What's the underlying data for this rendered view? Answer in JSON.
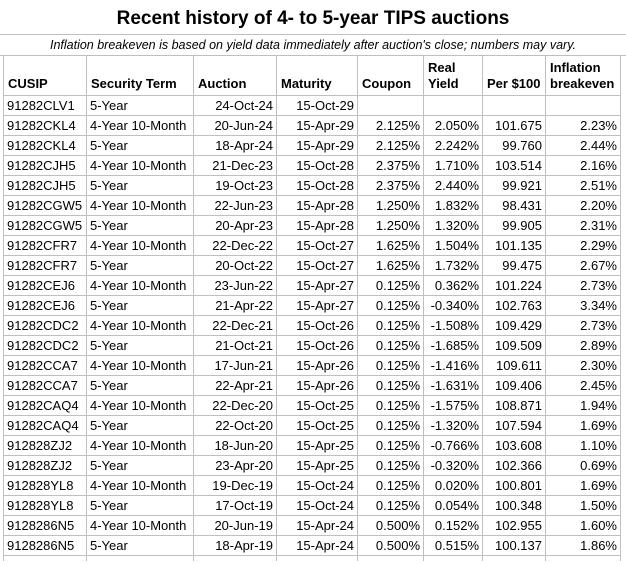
{
  "title": "Recent history of 4- to 5-year TIPS auctions",
  "subtitle": "Inflation breakeven is based on yield data immediately after auction's close; numbers may vary.",
  "colors": {
    "background": "#ffffff",
    "text": "#000000",
    "gridline": "#bfbfbf"
  },
  "table": {
    "columns": [
      "CUSIP",
      "Security Term",
      "Auction",
      "Maturity",
      "Coupon",
      "Real Yield",
      "Per $100",
      "Inflation breakeven"
    ],
    "rows": [
      [
        "91282CLV1",
        "5-Year",
        "24-Oct-24",
        "15-Oct-29",
        "",
        "",
        "",
        ""
      ],
      [
        "91282CKL4",
        "4-Year 10-Month",
        "20-Jun-24",
        "15-Apr-29",
        "2.125%",
        "2.050%",
        "101.675",
        "2.23%"
      ],
      [
        "91282CKL4",
        "5-Year",
        "18-Apr-24",
        "15-Apr-29",
        "2.125%",
        "2.242%",
        "99.760",
        "2.44%"
      ],
      [
        "91282CJH5",
        "4-Year 10-Month",
        "21-Dec-23",
        "15-Oct-28",
        "2.375%",
        "1.710%",
        "103.514",
        "2.16%"
      ],
      [
        "91282CJH5",
        "5-Year",
        "19-Oct-23",
        "15-Oct-28",
        "2.375%",
        "2.440%",
        "99.921",
        "2.51%"
      ],
      [
        "91282CGW5",
        "4-Year 10-Month",
        "22-Jun-23",
        "15-Apr-28",
        "1.250%",
        "1.832%",
        "98.431",
        "2.20%"
      ],
      [
        "91282CGW5",
        "5-Year",
        "20-Apr-23",
        "15-Apr-28",
        "1.250%",
        "1.320%",
        "99.905",
        "2.31%"
      ],
      [
        "91282CFR7",
        "4-Year 10-Month",
        "22-Dec-22",
        "15-Oct-27",
        "1.625%",
        "1.504%",
        "101.135",
        "2.29%"
      ],
      [
        "91282CFR7",
        "5-Year",
        "20-Oct-22",
        "15-Oct-27",
        "1.625%",
        "1.732%",
        "99.475",
        "2.67%"
      ],
      [
        "91282CEJ6",
        "4-Year 10-Month",
        "23-Jun-22",
        "15-Apr-27",
        "0.125%",
        "0.362%",
        "101.224",
        "2.73%"
      ],
      [
        "91282CEJ6",
        "5-Year",
        "21-Apr-22",
        "15-Apr-27",
        "0.125%",
        "-0.340%",
        "102.763",
        "3.34%"
      ],
      [
        "91282CDC2",
        "4-Year 10-Month",
        "22-Dec-21",
        "15-Oct-26",
        "0.125%",
        "-1.508%",
        "109.429",
        "2.73%"
      ],
      [
        "91282CDC2",
        "5-Year",
        "21-Oct-21",
        "15-Oct-26",
        "0.125%",
        "-1.685%",
        "109.509",
        "2.89%"
      ],
      [
        "91282CCA7",
        "4-Year 10-Month",
        "17-Jun-21",
        "15-Apr-26",
        "0.125%",
        "-1.416%",
        "109.611",
        "2.30%"
      ],
      [
        "91282CCA7",
        "5-Year",
        "22-Apr-21",
        "15-Apr-26",
        "0.125%",
        "-1.631%",
        "109.406",
        "2.45%"
      ],
      [
        "91282CAQ4",
        "4-Year 10-Month",
        "22-Dec-20",
        "15-Oct-25",
        "0.125%",
        "-1.575%",
        "108.871",
        "1.94%"
      ],
      [
        "91282CAQ4",
        "5-Year",
        "22-Oct-20",
        "15-Oct-25",
        "0.125%",
        "-1.320%",
        "107.594",
        "1.69%"
      ],
      [
        "912828ZJ2",
        "4-Year 10-Month",
        "18-Jun-20",
        "15-Apr-25",
        "0.125%",
        "-0.766%",
        "103.608",
        "1.10%"
      ],
      [
        "912828ZJ2",
        "5-Year",
        "23-Apr-20",
        "15-Apr-25",
        "0.125%",
        "-0.320%",
        "102.366",
        "0.69%"
      ],
      [
        "912828YL8",
        "4-Year 10-Month",
        "19-Dec-19",
        "15-Oct-24",
        "0.125%",
        "0.020%",
        "100.801",
        "1.69%"
      ],
      [
        "912828YL8",
        "5-Year",
        "17-Oct-19",
        "15-Oct-24",
        "0.125%",
        "0.054%",
        "100.348",
        "1.50%"
      ],
      [
        "9128286N5",
        "4-Year 10-Month",
        "20-Jun-19",
        "15-Apr-24",
        "0.500%",
        "0.152%",
        "102.955",
        "1.60%"
      ],
      [
        "9128286N5",
        "5-Year",
        "18-Apr-19",
        "15-Apr-24",
        "0.500%",
        "0.515%",
        "100.137",
        "1.86%"
      ]
    ]
  }
}
